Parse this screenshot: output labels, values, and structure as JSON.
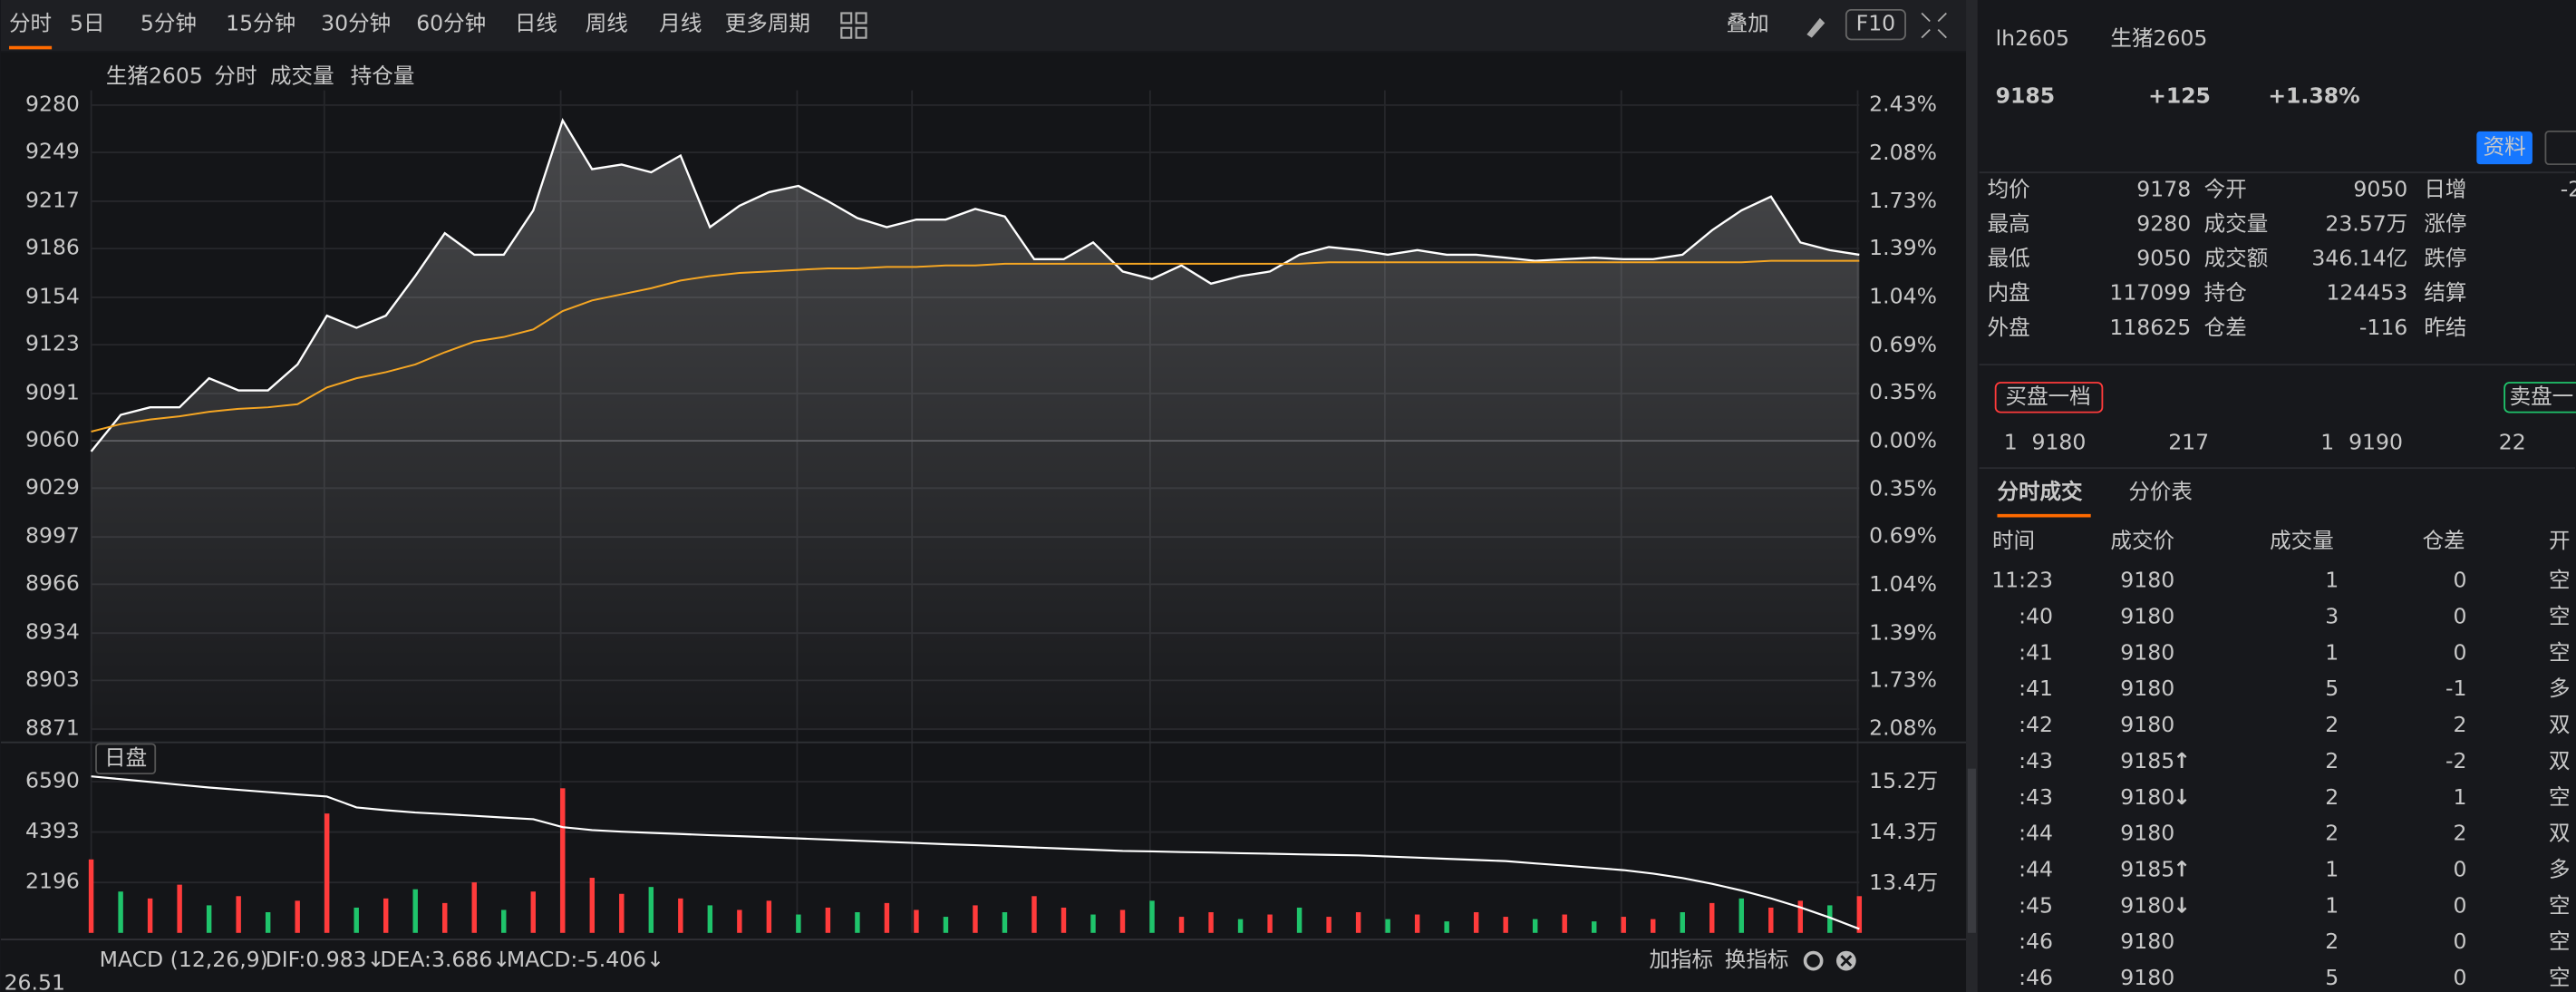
{
  "toolbar": {
    "periods": [
      "分时",
      "5日",
      "5分钟",
      "15分钟",
      "30分钟",
      "60分钟",
      "日线",
      "周线",
      "月线",
      "更多周期"
    ],
    "overlay": "叠加",
    "f10": "F10"
  },
  "chart_legend": {
    "name": "生猪2605",
    "items": [
      "分时",
      "成交量",
      "持仓量"
    ]
  },
  "session_label": "日盘",
  "chart_data": [
    {
      "type": "line",
      "grid": true,
      "series": [
        {
          "color": "#ffffff",
          "values": [
            9053,
            9077,
            9082,
            9082,
            9101,
            9093,
            9093,
            9110,
            9142,
            9134,
            9142,
            9168,
            9196,
            9182,
            9182,
            9211,
            9270,
            9238,
            9241,
            9236,
            9247,
            9200,
            9214,
            9223,
            9227,
            9217,
            9206,
            9200,
            9205,
            9205,
            9212,
            9207,
            9179,
            9179,
            9190,
            9171,
            9166,
            9175,
            9163,
            9168,
            9171,
            9182,
            9187,
            9185,
            9182,
            9185,
            9182,
            9182,
            9180,
            9178,
            9179,
            9180,
            9179,
            9179,
            9182,
            9198,
            9211,
            9220,
            9190,
            9185,
            9182
          ]
        },
        {
          "color": "#f5a623",
          "values": [
            9066,
            9071,
            9074,
            9076,
            9079,
            9081,
            9082,
            9084,
            9095,
            9101,
            9105,
            9110,
            9118,
            9125,
            9128,
            9133,
            9145,
            9152,
            9156,
            9160,
            9165,
            9168,
            9170,
            9171,
            9172,
            9173,
            9173,
            9174,
            9174,
            9175,
            9175,
            9176,
            9176,
            9176,
            9176,
            9176,
            9176,
            9176,
            9176,
            9176,
            9176,
            9176,
            9177,
            9177,
            9177,
            9177,
            9177,
            9177,
            9177,
            9177,
            9177,
            9177,
            9177,
            9177,
            9177,
            9177,
            9177,
            9178,
            9178,
            9178,
            9178
          ]
        }
      ],
      "ylim": [
        8871,
        9280
      ],
      "yticks": [
        9280,
        9249,
        9217,
        9186,
        9154,
        9123,
        9091,
        9060,
        9029,
        8997,
        8966,
        8934,
        8903,
        8871
      ],
      "y2lim": [
        -2.08,
        2.43
      ],
      "y2ticks": [
        {
          "value": 2.43,
          "label": "2.43%"
        },
        {
          "value": 2.08,
          "label": "2.08%"
        },
        {
          "value": 1.73,
          "label": "1.73%"
        },
        {
          "value": 1.39,
          "label": "1.39%"
        },
        {
          "value": 1.04,
          "label": "1.04%"
        },
        {
          "value": 0.69,
          "label": "0.69%"
        },
        {
          "value": 0.35,
          "label": "0.35%"
        },
        {
          "value": 0,
          "label": "0.00%"
        },
        {
          "value": -0.35,
          "label": "0.35%"
        },
        {
          "value": -0.69,
          "label": "0.69%"
        },
        {
          "value": -1.04,
          "label": "1.04%"
        },
        {
          "value": -1.39,
          "label": "1.39%"
        },
        {
          "value": -1.73,
          "label": "1.73%"
        },
        {
          "value": -2.08,
          "label": "2.08%"
        }
      ]
    },
    {
      "type": "bar",
      "grid": true,
      "series": [
        {
          "values": [
            3200,
            1800,
            1500,
            2100,
            1200,
            1600,
            900,
            1400,
            5200,
            1100,
            1500,
            1900,
            1300,
            2200,
            1000,
            1800,
            6300,
            2400,
            1700,
            2000,
            1500,
            1200,
            1000,
            1400,
            800,
            1100,
            900,
            1300,
            1000,
            700,
            1200,
            900,
            1600,
            1100,
            800,
            1000,
            1400,
            700,
            900,
            600,
            800,
            1100,
            700,
            900,
            600,
            800,
            500,
            900,
            700,
            600,
            800,
            500,
            700,
            600,
            900,
            1300,
            1500,
            1100,
            1400,
            1200,
            1600
          ],
          "colors": [
            "#ff3b3b",
            "#1fc46b",
            "#ff3b3b",
            "#ff3b3b",
            "#1fc46b",
            "#ff3b3b",
            "#1fc46b",
            "#ff3b3b",
            "#ff3b3b",
            "#1fc46b",
            "#ff3b3b",
            "#1fc46b",
            "#ff3b3b",
            "#ff3b3b",
            "#1fc46b",
            "#ff3b3b",
            "#ff3b3b",
            "#ff3b3b",
            "#ff3b3b",
            "#1fc46b",
            "#ff3b3b",
            "#1fc46b",
            "#ff3b3b",
            "#ff3b3b",
            "#1fc46b",
            "#ff3b3b",
            "#1fc46b",
            "#ff3b3b",
            "#ff3b3b",
            "#1fc46b",
            "#ff3b3b",
            "#1fc46b",
            "#ff3b3b",
            "#ff3b3b",
            "#1fc46b",
            "#ff3b3b",
            "#1fc46b",
            "#ff3b3b",
            "#ff3b3b",
            "#1fc46b",
            "#ff3b3b",
            "#1fc46b",
            "#ff3b3b",
            "#ff3b3b",
            "#1fc46b",
            "#ff3b3b",
            "#1fc46b",
            "#ff3b3b",
            "#ff3b3b",
            "#1fc46b",
            "#ff3b3b",
            "#1fc46b",
            "#ff3b3b",
            "#ff3b3b",
            "#1fc46b",
            "#ff3b3b",
            "#1fc46b",
            "#ff3b3b",
            "#ff3b3b",
            "#1fc46b",
            "#ff3b3b"
          ]
        },
        {
          "type": "line",
          "axis": "y2",
          "color": "#ffffff",
          "values": [
            153000,
            152500,
            152000,
            151500,
            151000,
            150600,
            150200,
            149800,
            149400,
            147500,
            147000,
            146600,
            146300,
            146000,
            145700,
            145400,
            144000,
            143500,
            143200,
            143000,
            142800,
            142600,
            142400,
            142200,
            142000,
            141800,
            141600,
            141400,
            141200,
            141000,
            140800,
            140600,
            140400,
            140200,
            140000,
            139800,
            139700,
            139600,
            139500,
            139400,
            139300,
            139200,
            139100,
            139000,
            138800,
            138600,
            138400,
            138200,
            138000,
            137600,
            137200,
            136800,
            136400,
            135800,
            135000,
            134000,
            132800,
            131400,
            129800,
            128000,
            126000
          ]
        }
      ],
      "ylim": [
        0,
        8300
      ],
      "yticks": [
        6590,
        4393,
        2196
      ],
      "y2lim": [
        125300,
        159000
      ],
      "y2ticks": [
        {
          "value": 152000,
          "label": "15.2万"
        },
        {
          "value": 143000,
          "label": "14.3万"
        },
        {
          "value": 134000,
          "label": "13.4万"
        }
      ]
    }
  ],
  "macd": {
    "title": "MACD (12,26,9)",
    "dif": "DIF:0.983↓",
    "dea": "DEA:3.686↓",
    "macd": "MACD:-5.406↓",
    "tick": "26.51",
    "add": "加指标",
    "switch": "换指标"
  },
  "quote": {
    "code": "lh2605",
    "name": "生猪2605",
    "price": "9185",
    "change": "+125",
    "change_pct": "+1.38%",
    "info_button": "资料"
  },
  "stats": [
    [
      {
        "label": "均价",
        "value": "9178",
        "color": "#ff3b3b"
      },
      {
        "label": "今开",
        "value": "9050",
        "color": "#1fc46b"
      },
      {
        "label": "日增",
        "value": "-2",
        "color": "#1fc46b"
      }
    ],
    [
      {
        "label": "最高",
        "value": "9280",
        "color": "#ff3b3b"
      },
      {
        "label": "成交量",
        "value": "23.57万",
        "color": "#e6e6e6"
      },
      {
        "label": "涨停"
      }
    ],
    [
      {
        "label": "最低",
        "value": "9050",
        "color": "#1fc46b"
      },
      {
        "label": "成交额",
        "value": "346.14亿",
        "color": "#3fb6ff"
      },
      {
        "label": "跌停"
      }
    ],
    [
      {
        "label": "内盘",
        "value": "117099",
        "color": "#1fc46b"
      },
      {
        "label": "持仓",
        "value": "124453",
        "color": "#e6e6e6"
      },
      {
        "label": "结算"
      }
    ],
    [
      {
        "label": "外盘",
        "value": "118625",
        "color": "#ff3b3b"
      },
      {
        "label": "仓差",
        "value": "-116",
        "color": "#e6e6e6"
      },
      {
        "label": "昨结"
      }
    ]
  ],
  "order_book": {
    "bid_title": "买盘一档",
    "ask_title": "卖盘一",
    "bid": [
      "1",
      "9180",
      "217"
    ],
    "ask": [
      "1",
      "9190",
      "22"
    ]
  },
  "trades": {
    "tabs": [
      "分时成交",
      "分价表"
    ],
    "headers": [
      "时间",
      "成交价",
      "成交量",
      "仓差",
      "开"
    ],
    "rows": [
      {
        "time": "11:23",
        "price": "9180",
        "volume": "1",
        "oi": "0",
        "type": "空",
        "color": "#1fc46b"
      },
      {
        "time": ":40",
        "price": "9180",
        "volume": "3",
        "oi": "0",
        "type": "空",
        "color": "#1fc46b"
      },
      {
        "time": ":41",
        "price": "9180",
        "volume": "1",
        "oi": "0",
        "type": "空",
        "color": "#1fc46b"
      },
      {
        "time": ":41",
        "price": "9180",
        "volume": "5",
        "oi": "-1",
        "type": "多",
        "color": "#ff3b3b"
      },
      {
        "time": ":42",
        "price": "9180",
        "volume": "2",
        "oi": "2",
        "type": "双",
        "color": "#ff3b3b"
      },
      {
        "time": ":43",
        "price": "9185",
        "arrow": "↑",
        "arrow_color": "#ff3b3b",
        "volume": "2",
        "oi": "-2",
        "type": "双",
        "color": "#ff3b3b"
      },
      {
        "time": ":43",
        "price": "9180",
        "arrow": "↓",
        "arrow_color": "#1fc46b",
        "volume": "2",
        "oi": "1",
        "type": "空",
        "color": "#1fc46b"
      },
      {
        "time": ":44",
        "price": "9180",
        "volume": "2",
        "oi": "2",
        "type": "双",
        "color": "#ff3b3b"
      },
      {
        "time": ":44",
        "price": "9185",
        "arrow": "↑",
        "arrow_color": "#ff3b3b",
        "volume": "1",
        "oi": "0",
        "type": "多",
        "color": "#ff3b3b"
      },
      {
        "time": ":45",
        "price": "9180",
        "arrow": "↓",
        "arrow_color": "#1fc46b",
        "volume": "1",
        "oi": "0",
        "type": "空",
        "color": "#1fc46b"
      },
      {
        "time": ":46",
        "price": "9180",
        "volume": "2",
        "oi": "0",
        "type": "空",
        "color": "#1fc46b"
      },
      {
        "time": ":46",
        "price": "9180",
        "volume": "5",
        "oi": "0",
        "type": "空",
        "color": "#1fc46b"
      }
    ]
  }
}
